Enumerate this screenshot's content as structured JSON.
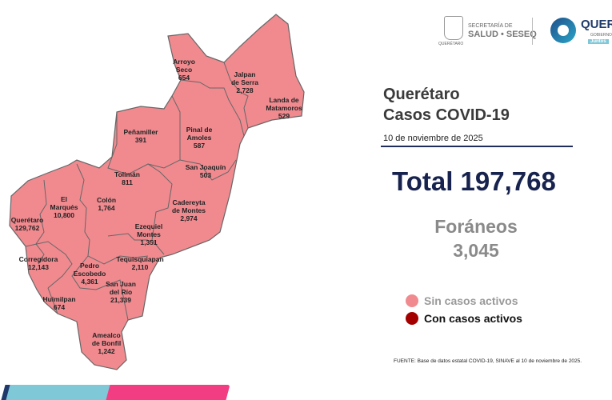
{
  "header": {
    "secretaria_line1": "SECRETARÍA DE",
    "secretaria_line2": "SALUD • SESEQ",
    "seal_caption": "QUERÉTARO",
    "gov_logo_text": "QUERÉ",
    "gov_logo_sub": "GOBIERNO",
    "gov_logo_tag": "Juntos"
  },
  "title": {
    "line1": "Querétaro",
    "line2": "Casos COVID-19"
  },
  "date": "10 de noviembre de 2025",
  "total_label": "Total 197,768",
  "foraneos": {
    "label": "Foráneos",
    "value": "3,045"
  },
  "legend": [
    {
      "label": "Sin casos activos",
      "color": "#f08a8f"
    },
    {
      "label": "Con casos activos",
      "color": "#a50000"
    }
  ],
  "source": "FUENTE: Base de datos estatal COVID-19, SINAVE al 10 de noviembre de 2025.",
  "colors": {
    "map_fill": "#f08a8f",
    "title_navy": "#17234e",
    "bar_blue": "#7ec8d8",
    "bar_pink": "#f23d82"
  },
  "municipalities": [
    {
      "name": "Arroyo\nSeco",
      "cases": "654"
    },
    {
      "name": "Jalpan\nde Serra",
      "cases": "2,728"
    },
    {
      "name": "Landa de\nMatamoros",
      "cases": "529"
    },
    {
      "name": "Peñamiller",
      "cases": "391"
    },
    {
      "name": "Pinal de\nAmoles",
      "cases": "587"
    },
    {
      "name": "San Joaquín",
      "cases": "503"
    },
    {
      "name": "Tolimán",
      "cases": "811"
    },
    {
      "name": "El\nMarqués",
      "cases": "10,800"
    },
    {
      "name": "Colón",
      "cases": "1,764"
    },
    {
      "name": "Cadereyta\nde Montes",
      "cases": "2,974"
    },
    {
      "name": "Querétaro",
      "cases": "129,762"
    },
    {
      "name": "Ezequiel\nMontes",
      "cases": "1,351"
    },
    {
      "name": "Tequisquiapan",
      "cases": "2,110"
    },
    {
      "name": "Corregidora",
      "cases": "12,143"
    },
    {
      "name": "Pedro\nEscobedo",
      "cases": "4,361"
    },
    {
      "name": "San Juan\ndel Río",
      "cases": "21,339"
    },
    {
      "name": "Huimilpan",
      "cases": "674"
    },
    {
      "name": "Amealco\nde Bonfil",
      "cases": "1,242"
    }
  ]
}
